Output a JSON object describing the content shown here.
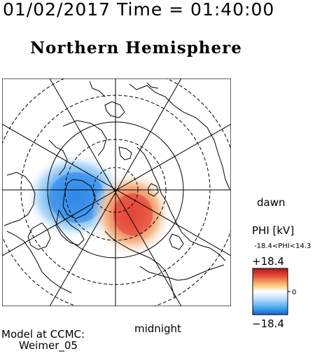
{
  "header": {
    "timestamp": "01/02/2017 Time = 01:40:00",
    "title": "Northern Hemisphere"
  },
  "map": {
    "projection": "polar stereographic, north pole centered",
    "grid_rings": 4,
    "meridian_lines": 12,
    "labels": {
      "dawn": "dawn",
      "midnight": "midnight"
    }
  },
  "colorbar": {
    "title": "PHI [kV]",
    "range_text": "-18.4<PHI<14.3",
    "max_label": "+18.4",
    "zero_label": "0",
    "min_label": "−18.4",
    "colors": {
      "negative": "#2b8ff0",
      "zero": "#ffffff",
      "positive": "#e8463a"
    }
  },
  "footer": {
    "line1": "Model at CCMC:",
    "line2": "Weimer_05"
  },
  "potential": {
    "negative_peak_kV": -18.4,
    "positive_peak_kV": 14.3
  }
}
